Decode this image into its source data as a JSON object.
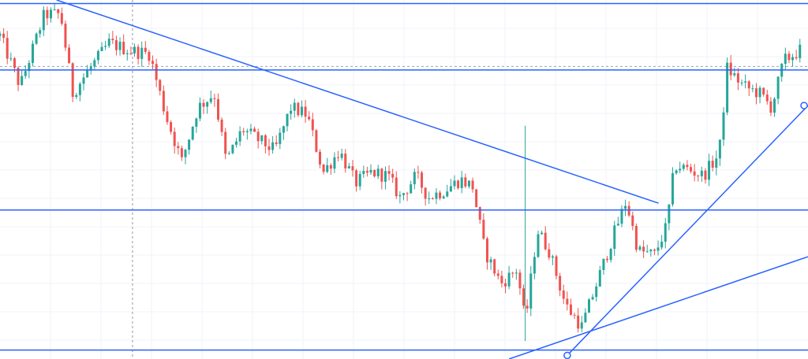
{
  "chart_data": {
    "type": "candlestick",
    "title": "",
    "xlabel": "",
    "ylabel": "",
    "x_range": [
      0,
      100
    ],
    "ylim": [
      0,
      100
    ],
    "grid": true,
    "colors": {
      "up": "#26a69a",
      "down": "#ef5350",
      "drawing": "#2962ff",
      "grid": "#f0f3fa",
      "crosshair": "#9598a1",
      "price_line": "#9aa3b2"
    },
    "last_price_level": 81.5,
    "horizontal_levels": [
      99,
      80.5,
      41.5,
      2.5
    ],
    "trend_lines": [
      {
        "name": "",
        "x1": 7,
        "y1": 100,
        "x2": 81.5,
        "y2": 43.4
      },
      {
        "name": "",
        "x1": 63,
        "y1": 0,
        "x2": 100,
        "y2": 28.5
      },
      {
        "name": "",
        "x1": 70.2,
        "y1": 1,
        "x2": 100,
        "y2": 70.6
      }
    ],
    "anchor_points": [
      {
        "x": 70.2,
        "y": 1
      },
      {
        "x": 100,
        "y": 70.6
      }
    ],
    "vertical_marker_x": 16.4,
    "candles": []
  }
}
